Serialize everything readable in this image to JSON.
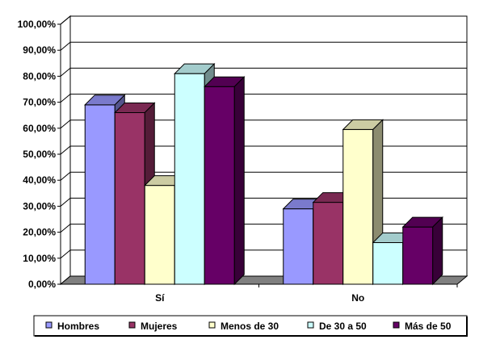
{
  "chart_data": {
    "type": "bar",
    "categories": [
      "Sí",
      "No"
    ],
    "series": [
      {
        "name": "Hombres",
        "values": [
          69,
          29
        ],
        "color": "#9999ff"
      },
      {
        "name": "Mujeres",
        "values": [
          66,
          31.5
        ],
        "color": "#993366"
      },
      {
        "name": "Menos de 30",
        "values": [
          38,
          59.5
        ],
        "color": "#ffffcc"
      },
      {
        "name": "De 30 a 50",
        "values": [
          81,
          16
        ],
        "color": "#ccffff"
      },
      {
        "name": "Más de 50",
        "values": [
          76,
          22
        ],
        "color": "#660066"
      }
    ],
    "yticks": [
      "0,00%",
      "10,00%",
      "20,00%",
      "30,00%",
      "40,00%",
      "50,00%",
      "60,00%",
      "70,00%",
      "80,00%",
      "90,00%",
      "100,00%"
    ],
    "ylim": [
      0,
      100
    ],
    "grid": true,
    "legend_position": "bottom",
    "three_d": true
  }
}
